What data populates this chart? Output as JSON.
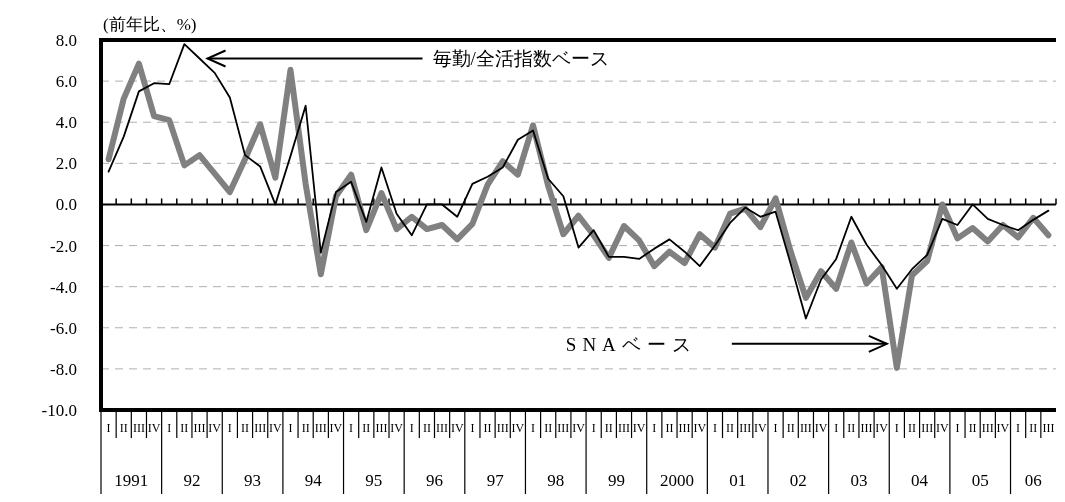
{
  "chart_data": {
    "type": "line",
    "ylabel": "(前年比、%)",
    "categories": [
      "I",
      "II",
      "III",
      "IV",
      "I",
      "II",
      "III",
      "IV",
      "I",
      "II",
      "III",
      "IV",
      "I",
      "II",
      "III",
      "IV",
      "I",
      "II",
      "III",
      "IV",
      "I",
      "II",
      "III",
      "IV",
      "I",
      "II",
      "III",
      "IV",
      "I",
      "II",
      "III",
      "IV",
      "I",
      "II",
      "III",
      "IV",
      "I",
      "II",
      "III",
      "IV",
      "I",
      "II",
      "III",
      "IV",
      "I",
      "II",
      "III",
      "IV",
      "I",
      "II",
      "III",
      "IV",
      "I",
      "II",
      "III",
      "IV",
      "I",
      "II",
      "III",
      "IV",
      "I",
      "II",
      "III"
    ],
    "series": [
      {
        "color": "#808080",
        "values": [
          2.2,
          5.15,
          6.85,
          4.3,
          4.1,
          1.9,
          2.4,
          1.5,
          0.6,
          2.2,
          3.9,
          1.3,
          6.55,
          1.0,
          -3.4,
          0.4,
          1.45,
          -1.25,
          0.55,
          -1.2,
          -0.6,
          -1.2,
          -1.0,
          -1.7,
          -0.95,
          0.95,
          2.1,
          1.45,
          3.85,
          0.9,
          -1.45,
          -0.55,
          -1.5,
          -2.6,
          -1.05,
          -1.75,
          -3.0,
          -2.3,
          -2.85,
          -1.45,
          -2.1,
          -0.45,
          -0.2,
          -1.1,
          0.3,
          -2.3,
          -4.55,
          -3.25,
          -4.1,
          -1.85,
          -3.85,
          -3.05,
          -7.95,
          -3.45,
          -2.75,
          0.0,
          -1.65,
          -1.15,
          -1.8,
          -1.0,
          -1.6,
          -0.65,
          -1.5
        ]
      },
      {
        "color": "#000000",
        "values": [
          1.6,
          3.3,
          5.5,
          5.9,
          5.85,
          7.8,
          7.1,
          6.4,
          5.2,
          2.4,
          1.85,
          0,
          2.35,
          4.8,
          -2.35,
          0.6,
          1.1,
          -0.85,
          1.8,
          -0.45,
          -1.5,
          0,
          0,
          -0.6,
          1.0,
          1.35,
          1.8,
          3.15,
          3.6,
          1.25,
          0.4,
          -2.1,
          -1.25,
          -2.55,
          -2.55,
          -2.65,
          -2.15,
          -1.7,
          -2.3,
          -3.0,
          -2.0,
          -0.9,
          -0.15,
          -0.6,
          -0.35,
          -2.9,
          -5.55,
          -3.65,
          -2.65,
          -0.6,
          -1.95,
          -2.95,
          -4.1,
          -3.15,
          -2.45,
          -0.7,
          -1.0,
          0.0,
          -0.7,
          -1.0,
          -1.25,
          -0.75,
          -0.3
        ]
      }
    ],
    "ylim": [
      -10,
      8
    ],
    "yticks": [
      {
        "value": 8,
        "label": "8.0"
      },
      {
        "value": 6,
        "label": "6.0"
      },
      {
        "value": 4,
        "label": "4.0"
      },
      {
        "value": 2,
        "label": "2.0"
      },
      {
        "value": 0,
        "label": "0.0"
      },
      {
        "value": -2,
        "label": "-2.0"
      },
      {
        "value": -4,
        "label": "-4.0"
      },
      {
        "value": -6,
        "label": "-6.0"
      },
      {
        "value": -8,
        "label": "-8.0"
      },
      {
        "value": -10,
        "label": "-10.0"
      }
    ],
    "grid": "y",
    "ref_lines": [
      {
        "axis": "y",
        "value": 0
      }
    ],
    "annotations": [
      "毎勤/全活指数ベース",
      "SNAベース",
      "1991",
      "92",
      "93",
      "94",
      "95",
      "96",
      "97",
      "98",
      "99",
      "2000",
      "01",
      "02",
      "03",
      "04",
      "05",
      "06"
    ]
  }
}
